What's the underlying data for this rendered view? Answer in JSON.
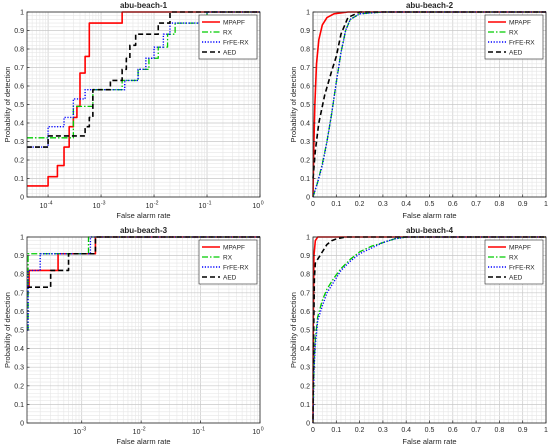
{
  "figure": {
    "panel_count": 4
  },
  "chart_data": [
    {
      "type": "line",
      "title": "abu-beach-1",
      "xlabel": "False alarm rate",
      "ylabel": "Probability of detection",
      "xscale": "log",
      "xlim": [
        4e-05,
        1
      ],
      "ylim": [
        0,
        1
      ],
      "x_tick_values": [
        0.0001,
        0.001,
        0.01,
        0.1,
        1
      ],
      "x_tick_labels": [
        [
          "10",
          "-4"
        ],
        [
          "10",
          "-3"
        ],
        [
          "10",
          "-2"
        ],
        [
          "10",
          "-1"
        ],
        [
          "10",
          "0"
        ]
      ],
      "y_ticks": [
        0,
        0.1,
        0.2,
        0.3,
        0.4,
        0.5,
        0.6,
        0.7,
        0.8,
        0.9,
        1
      ],
      "grid": true,
      "legend_position": "top-right",
      "series": [
        {
          "name": "MPAPF",
          "color": "#ff0000",
          "dash": "solid",
          "points": [
            [
              4e-05,
              0.06
            ],
            [
              0.0001,
              0.06
            ],
            [
              0.0001,
              0.11
            ],
            [
              0.00015,
              0.11
            ],
            [
              0.00015,
              0.17
            ],
            [
              0.0002,
              0.17
            ],
            [
              0.0002,
              0.27
            ],
            [
              0.00025,
              0.27
            ],
            [
              0.00025,
              0.38
            ],
            [
              0.0003,
              0.38
            ],
            [
              0.0003,
              0.43
            ],
            [
              0.00035,
              0.43
            ],
            [
              0.00035,
              0.49
            ],
            [
              0.0004,
              0.49
            ],
            [
              0.0004,
              0.67
            ],
            [
              0.0005,
              0.67
            ],
            [
              0.0005,
              0.76
            ],
            [
              0.0006,
              0.76
            ],
            [
              0.0006,
              0.94
            ],
            [
              0.0025,
              0.94
            ],
            [
              0.0025,
              1
            ],
            [
              1,
              1
            ]
          ]
        },
        {
          "name": "RX",
          "color": "#00cc00",
          "dash": "dashdot",
          "points": [
            [
              4e-05,
              0.32
            ],
            [
              0.0003,
              0.32
            ],
            [
              0.0003,
              0.49
            ],
            [
              0.0007,
              0.49
            ],
            [
              0.0007,
              0.58
            ],
            [
              0.0025,
              0.58
            ],
            [
              0.0025,
              0.63
            ],
            [
              0.005,
              0.63
            ],
            [
              0.005,
              0.69
            ],
            [
              0.008,
              0.69
            ],
            [
              0.008,
              0.75
            ],
            [
              0.012,
              0.75
            ],
            [
              0.012,
              0.81
            ],
            [
              0.018,
              0.81
            ],
            [
              0.018,
              0.88
            ],
            [
              0.025,
              0.88
            ],
            [
              0.025,
              0.94
            ],
            [
              0.1,
              0.94
            ],
            [
              0.1,
              1
            ],
            [
              1,
              1
            ]
          ]
        },
        {
          "name": "FrFE-RX",
          "color": "#0000ff",
          "dash": "dotted",
          "points": [
            [
              4e-05,
              0.27
            ],
            [
              0.0001,
              0.27
            ],
            [
              0.0001,
              0.38
            ],
            [
              0.0002,
              0.38
            ],
            [
              0.0002,
              0.43
            ],
            [
              0.0003,
              0.43
            ],
            [
              0.0003,
              0.53
            ],
            [
              0.0005,
              0.53
            ],
            [
              0.0005,
              0.58
            ],
            [
              0.0028,
              0.58
            ],
            [
              0.0028,
              0.63
            ],
            [
              0.005,
              0.63
            ],
            [
              0.005,
              0.69
            ],
            [
              0.007,
              0.69
            ],
            [
              0.007,
              0.75
            ],
            [
              0.01,
              0.75
            ],
            [
              0.01,
              0.81
            ],
            [
              0.015,
              0.81
            ],
            [
              0.015,
              0.88
            ],
            [
              0.02,
              0.88
            ],
            [
              0.02,
              0.94
            ],
            [
              0.1,
              0.94
            ],
            [
              0.1,
              1
            ],
            [
              1,
              1
            ]
          ]
        },
        {
          "name": "AED",
          "color": "#000000",
          "dash": "dashed",
          "points": [
            [
              4e-05,
              0.27
            ],
            [
              0.0001,
              0.27
            ],
            [
              0.0001,
              0.33
            ],
            [
              0.0005,
              0.33
            ],
            [
              0.0005,
              0.38
            ],
            [
              0.0006,
              0.38
            ],
            [
              0.0006,
              0.43
            ],
            [
              0.0007,
              0.43
            ],
            [
              0.0007,
              0.58
            ],
            [
              0.0015,
              0.58
            ],
            [
              0.0015,
              0.63
            ],
            [
              0.0025,
              0.63
            ],
            [
              0.0025,
              0.69
            ],
            [
              0.003,
              0.69
            ],
            [
              0.003,
              0.75
            ],
            [
              0.0035,
              0.75
            ],
            [
              0.0035,
              0.82
            ],
            [
              0.0045,
              0.82
            ],
            [
              0.0045,
              0.88
            ],
            [
              0.012,
              0.88
            ],
            [
              0.012,
              0.94
            ],
            [
              0.02,
              0.94
            ],
            [
              0.02,
              1
            ],
            [
              1,
              1
            ]
          ]
        }
      ]
    },
    {
      "type": "line",
      "title": "abu-beach-2",
      "xlabel": "False alarm rate",
      "ylabel": "Probability of detection",
      "xscale": "linear",
      "xlim": [
        0,
        1
      ],
      "ylim": [
        0,
        1
      ],
      "x_ticks": [
        0,
        0.1,
        0.2,
        0.3,
        0.4,
        0.5,
        0.6,
        0.7,
        0.8,
        0.9,
        1
      ],
      "y_ticks": [
        0,
        0.1,
        0.2,
        0.3,
        0.4,
        0.5,
        0.6,
        0.7,
        0.8,
        0.9,
        1
      ],
      "grid": true,
      "legend_position": "top-right",
      "series": [
        {
          "name": "MPAPF",
          "color": "#ff0000",
          "dash": "solid",
          "points": [
            [
              0,
              0
            ],
            [
              0.003,
              0.25
            ],
            [
              0.008,
              0.5
            ],
            [
              0.015,
              0.72
            ],
            [
              0.025,
              0.85
            ],
            [
              0.04,
              0.93
            ],
            [
              0.06,
              0.97
            ],
            [
              0.09,
              0.99
            ],
            [
              0.15,
              1
            ],
            [
              1,
              1
            ]
          ]
        },
        {
          "name": "RX",
          "color": "#00cc00",
          "dash": "dashdot",
          "points": [
            [
              0,
              0
            ],
            [
              0.02,
              0.08
            ],
            [
              0.04,
              0.18
            ],
            [
              0.06,
              0.3
            ],
            [
              0.08,
              0.45
            ],
            [
              0.1,
              0.62
            ],
            [
              0.12,
              0.78
            ],
            [
              0.14,
              0.9
            ],
            [
              0.16,
              0.96
            ],
            [
              0.2,
              0.99
            ],
            [
              0.3,
              1
            ],
            [
              1,
              1
            ]
          ]
        },
        {
          "name": "FrFE-RX",
          "color": "#0000ff",
          "dash": "dotted",
          "points": [
            [
              0,
              0
            ],
            [
              0.02,
              0.08
            ],
            [
              0.04,
              0.17
            ],
            [
              0.06,
              0.3
            ],
            [
              0.08,
              0.45
            ],
            [
              0.1,
              0.62
            ],
            [
              0.12,
              0.78
            ],
            [
              0.14,
              0.9
            ],
            [
              0.16,
              0.96
            ],
            [
              0.2,
              0.99
            ],
            [
              0.3,
              1
            ],
            [
              1,
              1
            ]
          ]
        },
        {
          "name": "AED",
          "color": "#000000",
          "dash": "dashed",
          "points": [
            [
              0,
              0.1
            ],
            [
              0.01,
              0.25
            ],
            [
              0.025,
              0.4
            ],
            [
              0.05,
              0.55
            ],
            [
              0.08,
              0.68
            ],
            [
              0.1,
              0.76
            ],
            [
              0.12,
              0.88
            ],
            [
              0.15,
              0.97
            ],
            [
              0.2,
              1
            ],
            [
              1,
              1
            ]
          ]
        }
      ]
    },
    {
      "type": "line",
      "title": "abu-beach-3",
      "xlabel": "False alarm rate",
      "ylabel": "Probability of detection",
      "xscale": "log",
      "xlim": [
        0.00012,
        1
      ],
      "ylim": [
        0,
        1
      ],
      "x_tick_values": [
        0.001,
        0.01,
        0.1,
        1
      ],
      "x_tick_labels": [
        [
          "10",
          "-3"
        ],
        [
          "10",
          "-2"
        ],
        [
          "10",
          "-1"
        ],
        [
          "10",
          "0"
        ]
      ],
      "y_ticks": [
        0,
        0.1,
        0.2,
        0.3,
        0.4,
        0.5,
        0.6,
        0.7,
        0.8,
        0.9,
        1
      ],
      "grid": true,
      "legend_position": "top-right",
      "series": [
        {
          "name": "MPAPF",
          "color": "#ff0000",
          "dash": "solid",
          "points": [
            [
              0.00012,
              0.73
            ],
            [
              0.00013,
              0.73
            ],
            [
              0.00013,
              0.82
            ],
            [
              0.0004,
              0.82
            ],
            [
              0.0004,
              0.91
            ],
            [
              0.0017,
              0.91
            ],
            [
              0.0017,
              1
            ],
            [
              1,
              1
            ]
          ]
        },
        {
          "name": "RX",
          "color": "#00cc00",
          "dash": "dashdot",
          "points": [
            [
              0.00012,
              0.5
            ],
            [
              0.000125,
              0.5
            ],
            [
              0.000125,
              0.91
            ],
            [
              0.0013,
              0.91
            ],
            [
              0.0013,
              1
            ],
            [
              1,
              1
            ]
          ]
        },
        {
          "name": "FrFE-RX",
          "color": "#0000ff",
          "dash": "dotted",
          "points": [
            [
              0.00012,
              0.5
            ],
            [
              0.000125,
              0.5
            ],
            [
              0.000125,
              0.82
            ],
            [
              0.0002,
              0.82
            ],
            [
              0.0002,
              0.91
            ],
            [
              0.0014,
              0.91
            ],
            [
              0.0014,
              1
            ],
            [
              1,
              1
            ]
          ]
        },
        {
          "name": "AED",
          "color": "#000000",
          "dash": "dashed",
          "points": [
            [
              0.00012,
              0.73
            ],
            [
              0.0003,
              0.73
            ],
            [
              0.0003,
              0.82
            ],
            [
              0.0006,
              0.82
            ],
            [
              0.0006,
              0.91
            ],
            [
              0.0017,
              0.91
            ],
            [
              0.0017,
              1
            ],
            [
              1,
              1
            ]
          ]
        }
      ]
    },
    {
      "type": "line",
      "title": "abu-beach-4",
      "xlabel": "False alarm rate",
      "ylabel": "Probability of detection",
      "xscale": "linear",
      "xlim": [
        0,
        1
      ],
      "ylim": [
        0,
        1
      ],
      "x_ticks": [
        0,
        0.1,
        0.2,
        0.3,
        0.4,
        0.5,
        0.6,
        0.7,
        0.8,
        0.9,
        1
      ],
      "y_ticks": [
        0,
        0.1,
        0.2,
        0.3,
        0.4,
        0.5,
        0.6,
        0.7,
        0.8,
        0.9,
        1
      ],
      "grid": true,
      "legend_position": "top-right",
      "series": [
        {
          "name": "MPAPF",
          "color": "#ff0000",
          "dash": "solid",
          "points": [
            [
              0,
              0
            ],
            [
              0.001,
              0.5
            ],
            [
              0.004,
              0.9
            ],
            [
              0.01,
              0.98
            ],
            [
              0.02,
              1
            ],
            [
              1,
              1
            ]
          ]
        },
        {
          "name": "RX",
          "color": "#00cc00",
          "dash": "dashdot",
          "points": [
            [
              0,
              0
            ],
            [
              0.004,
              0.3
            ],
            [
              0.01,
              0.45
            ],
            [
              0.02,
              0.57
            ],
            [
              0.04,
              0.66
            ],
            [
              0.06,
              0.72
            ],
            [
              0.09,
              0.78
            ],
            [
              0.12,
              0.83
            ],
            [
              0.16,
              0.88
            ],
            [
              0.2,
              0.92
            ],
            [
              0.25,
              0.95
            ],
            [
              0.3,
              0.97
            ],
            [
              0.35,
              0.99
            ],
            [
              0.4,
              1
            ],
            [
              1,
              1
            ]
          ]
        },
        {
          "name": "FrFE-RX",
          "color": "#0000ff",
          "dash": "dotted",
          "points": [
            [
              0,
              0
            ],
            [
              0.004,
              0.28
            ],
            [
              0.01,
              0.42
            ],
            [
              0.02,
              0.55
            ],
            [
              0.04,
              0.63
            ],
            [
              0.06,
              0.7
            ],
            [
              0.09,
              0.76
            ],
            [
              0.12,
              0.82
            ],
            [
              0.16,
              0.87
            ],
            [
              0.2,
              0.91
            ],
            [
              0.25,
              0.94
            ],
            [
              0.3,
              0.97
            ],
            [
              0.35,
              0.99
            ],
            [
              0.4,
              1
            ],
            [
              1,
              1
            ]
          ]
        },
        {
          "name": "AED",
          "color": "#000000",
          "dash": "dashed",
          "points": [
            [
              0,
              0.02
            ],
            [
              0.003,
              0.5
            ],
            [
              0.006,
              0.78
            ],
            [
              0.01,
              0.86
            ],
            [
              0.02,
              0.88
            ],
            [
              0.04,
              0.92
            ],
            [
              0.06,
              0.96
            ],
            [
              0.08,
              0.98
            ],
            [
              0.1,
              0.99
            ],
            [
              0.14,
              1
            ],
            [
              1,
              1
            ]
          ]
        }
      ]
    }
  ]
}
